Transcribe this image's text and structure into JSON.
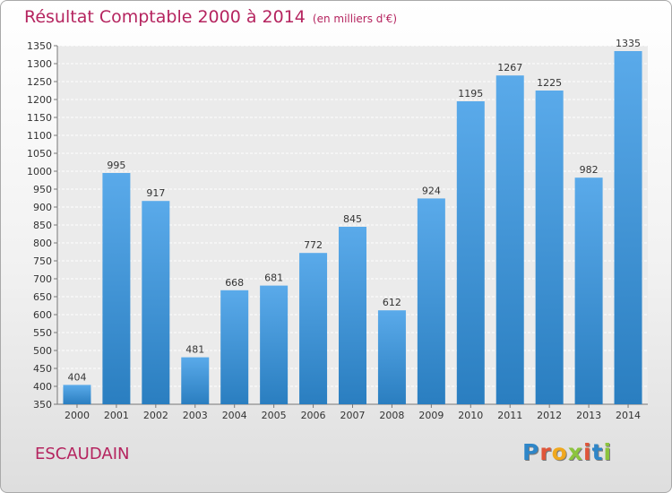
{
  "header": {
    "title": "Résultat Comptable 2000 à 2014",
    "unit": "(en milliers d'€)"
  },
  "footer": {
    "commune": "ESCAUDAIN",
    "brand": "Proxiti",
    "brand_colors": [
      "#2e86c8",
      "#e0563a",
      "#f0a81e",
      "#8cc43e",
      "#e0563a",
      "#2e86c8",
      "#8cc43e"
    ]
  },
  "chart_data": {
    "type": "bar",
    "title": "Résultat Comptable 2000 à 2014",
    "subtitle": "(en milliers d'€)",
    "categories": [
      "2000",
      "2001",
      "2002",
      "2003",
      "2004",
      "2005",
      "2006",
      "2007",
      "2008",
      "2009",
      "2010",
      "2011",
      "2012",
      "2013",
      "2014"
    ],
    "values": [
      404,
      995,
      917,
      481,
      668,
      681,
      772,
      845,
      612,
      924,
      1195,
      1267,
      1225,
      982,
      1335
    ],
    "ylim": [
      350,
      1350
    ],
    "ytick_step": 50,
    "grid": true,
    "bar_color_light": "#5aaaea",
    "bar_color_dark": "#2a7ec0"
  }
}
